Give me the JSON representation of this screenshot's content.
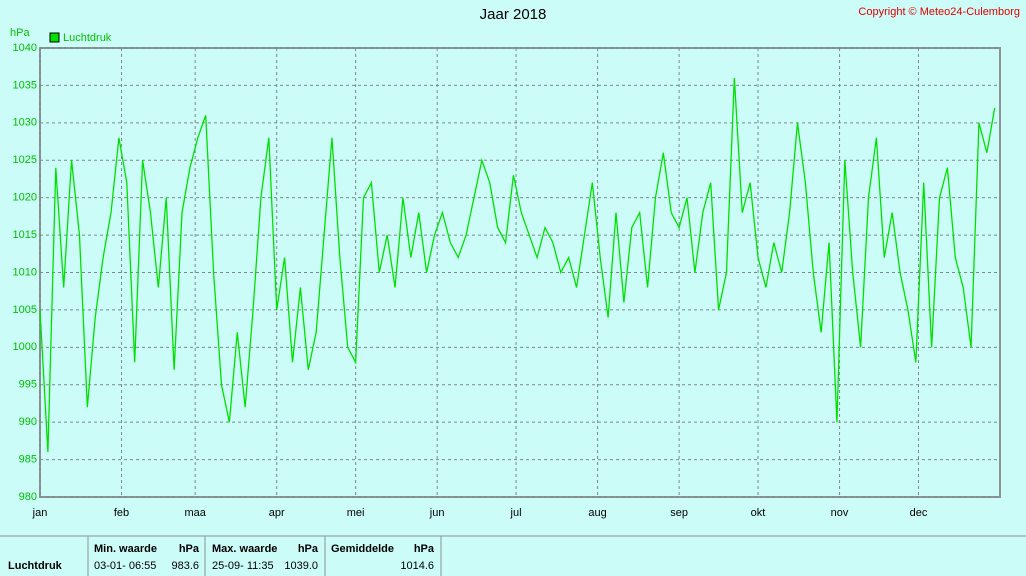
{
  "chart_data": {
    "type": "line",
    "title": "Jaar 2018",
    "copyright": "Copyright © Meteo24-Culemborg",
    "y_label": "hPa",
    "grid": true,
    "legend": "top-left",
    "xlim": [
      0,
      365
    ],
    "xticks": [
      {
        "value": 0,
        "label": "jan"
      },
      {
        "value": 31,
        "label": "feb"
      },
      {
        "value": 59,
        "label": "maa"
      },
      {
        "value": 90,
        "label": "apr"
      },
      {
        "value": 120,
        "label": "mei"
      },
      {
        "value": 151,
        "label": "jun"
      },
      {
        "value": 181,
        "label": "jul"
      },
      {
        "value": 212,
        "label": "aug"
      },
      {
        "value": 243,
        "label": "sep"
      },
      {
        "value": 273,
        "label": "okt"
      },
      {
        "value": 304,
        "label": "nov"
      },
      {
        "value": 334,
        "label": "dec"
      }
    ],
    "ylim": [
      980,
      1040
    ],
    "yticks": [
      980,
      985,
      990,
      995,
      1000,
      1005,
      1010,
      1015,
      1020,
      1025,
      1030,
      1035,
      1040
    ],
    "x": [
      0,
      3,
      6,
      9,
      12,
      15,
      18,
      21,
      24,
      27,
      30,
      33,
      36,
      39,
      42,
      45,
      48,
      51,
      54,
      57,
      60,
      63,
      66,
      69,
      72,
      75,
      78,
      81,
      84,
      87,
      90,
      93,
      96,
      99,
      102,
      105,
      108,
      111,
      114,
      117,
      120,
      123,
      126,
      129,
      132,
      135,
      138,
      141,
      144,
      147,
      150,
      153,
      156,
      159,
      162,
      165,
      168,
      171,
      174,
      177,
      180,
      183,
      186,
      189,
      192,
      195,
      198,
      201,
      204,
      207,
      210,
      213,
      216,
      219,
      222,
      225,
      228,
      231,
      234,
      237,
      240,
      243,
      246,
      249,
      252,
      255,
      258,
      261,
      264,
      267,
      270,
      273,
      276,
      279,
      282,
      285,
      288,
      291,
      294,
      297,
      300,
      303,
      306,
      309,
      312,
      315,
      318,
      321,
      324,
      327,
      330,
      333,
      336,
      339,
      342,
      345,
      348,
      351,
      354,
      357,
      360,
      363
    ],
    "series": [
      {
        "name": "Luchtdruk",
        "color": "#00e000",
        "values": [
          1005,
          986,
          1024,
          1008,
          1025,
          1015,
          992,
          1004,
          1012,
          1018,
          1028,
          1022,
          998,
          1025,
          1018,
          1008,
          1020,
          997,
          1018,
          1024,
          1028,
          1031,
          1010,
          995,
          990,
          1002,
          992,
          1005,
          1020,
          1028,
          1005,
          1012,
          998,
          1008,
          997,
          1002,
          1015,
          1028,
          1012,
          1000,
          998,
          1020,
          1022,
          1010,
          1015,
          1008,
          1020,
          1012,
          1018,
          1010,
          1015,
          1018,
          1014,
          1012,
          1015,
          1020,
          1025,
          1022,
          1016,
          1014,
          1023,
          1018,
          1015,
          1012,
          1016,
          1014,
          1010,
          1012,
          1008,
          1015,
          1022,
          1012,
          1004,
          1018,
          1006,
          1016,
          1018,
          1008,
          1020,
          1026,
          1018,
          1016,
          1020,
          1010,
          1018,
          1022,
          1005,
          1010,
          1036,
          1018,
          1022,
          1012,
          1008,
          1014,
          1010,
          1018,
          1030,
          1022,
          1010,
          1002,
          1014,
          990,
          1025,
          1010,
          1000,
          1020,
          1028,
          1012,
          1018,
          1010,
          1005,
          998,
          1022,
          1000,
          1020,
          1024,
          1012,
          1008,
          1000,
          1030,
          1026,
          1032
        ]
      }
    ]
  },
  "stats": {
    "row_label": "Luchtdruk",
    "min": {
      "header": "Min. waarde",
      "unit": "hPa",
      "time": "03-01- 06:55",
      "value": "983.6"
    },
    "max": {
      "header": "Max. waarde",
      "unit": "hPa",
      "time": "25-09- 11:35",
      "value": "1039.0"
    },
    "avg": {
      "header": "Gemiddelde",
      "unit": "hPa",
      "value": "1014.6"
    }
  }
}
